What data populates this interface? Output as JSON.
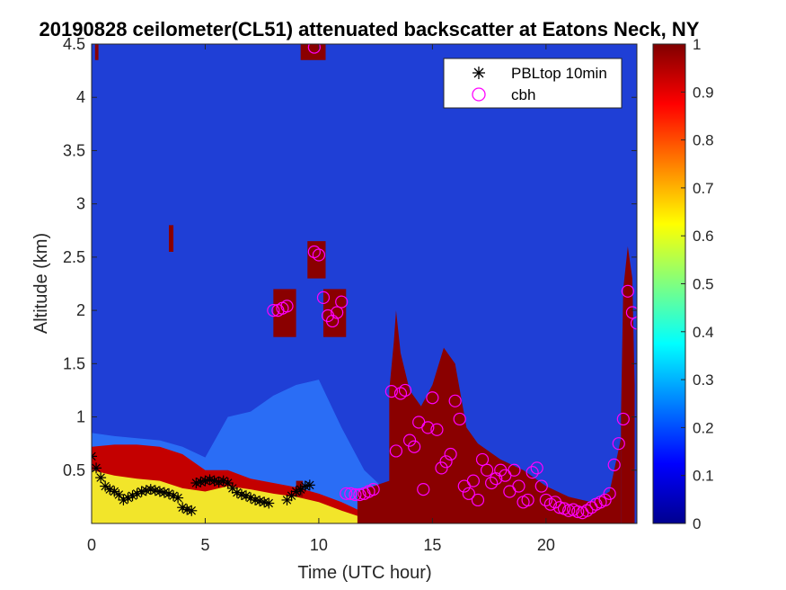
{
  "chart_data": {
    "type": "heatmap",
    "title": "20190828 ceilometer(CL51) attenuated backscatter at Eatons Neck, NY",
    "xlabel": "Time (UTC hour)",
    "ylabel": "Altitude (km)",
    "xlim": [
      0,
      24
    ],
    "ylim": [
      0.0,
      4.5
    ],
    "xticks": [
      0,
      5,
      10,
      15,
      20
    ],
    "yticks": [
      0.5,
      1,
      1.5,
      2,
      2.5,
      3,
      3.5,
      4,
      4.5
    ],
    "xtick_labels": [
      "0",
      "5",
      "10",
      "15",
      "20"
    ],
    "ytick_labels": [
      "0.5",
      "1",
      "1.5",
      "2",
      "2.5",
      "3",
      "3.5",
      "4",
      "4.5"
    ],
    "colormap": "jet",
    "colorbar": {
      "range": [
        0,
        1
      ],
      "ticks": [
        0,
        0.1,
        0.2,
        0.3,
        0.4,
        0.5,
        0.6,
        0.7,
        0.8,
        0.9,
        1
      ],
      "tick_labels": [
        "0",
        "0.1",
        "0.2",
        "0.3",
        "0.4",
        "0.5",
        "0.6",
        "0.7",
        "0.8",
        "0.9",
        "1"
      ]
    },
    "legend": {
      "position": "top-right",
      "entries": [
        {
          "label": "PBLtop 10min",
          "marker": "asterisk",
          "color": "#000000"
        },
        {
          "label": "cbh",
          "marker": "circle",
          "color": "#ff00ff"
        }
      ]
    },
    "background_value": 0.05,
    "boundary_layer": {
      "comment_free": true,
      "x": [
        0,
        1,
        2,
        3,
        4,
        5,
        6,
        7,
        8,
        9,
        10,
        11,
        12,
        13
      ],
      "red_top": [
        0.72,
        0.74,
        0.74,
        0.72,
        0.65,
        0.5,
        0.5,
        0.42,
        0.38,
        0.34,
        0.28,
        0.2,
        0.1,
        0.05
      ],
      "yellow_top": [
        0.5,
        0.45,
        0.42,
        0.4,
        0.33,
        0.3,
        0.35,
        0.32,
        0.28,
        0.25,
        0.2,
        0.12,
        0.05,
        0.02
      ],
      "aerosol_top": [
        0.85,
        0.82,
        0.8,
        0.78,
        0.72,
        0.62,
        1.0,
        1.05,
        1.2,
        1.3,
        1.35,
        0.9,
        0.5,
        0.3
      ]
    },
    "cloud_regions": [
      {
        "x": [
          11.7,
          13.1,
          13.1,
          13.3,
          13.4,
          13.6,
          14.0,
          14.5,
          15.0,
          15.5,
          16.0,
          16.5,
          17.0,
          18.0,
          19.0,
          20.0,
          21.0,
          22.0,
          22.8,
          23.3,
          23.3
        ],
        "top": [
          0.3,
          0.4,
          1.25,
          1.7,
          2.0,
          1.6,
          1.25,
          1.1,
          1.3,
          1.65,
          1.5,
          0.9,
          0.75,
          0.6,
          0.5,
          0.35,
          0.25,
          0.2,
          0.3,
          0.8,
          0.2
        ]
      },
      {
        "x": [
          23.3,
          23.4,
          23.6,
          23.8,
          23.9
        ],
        "top": [
          1.0,
          2.2,
          2.6,
          2.3,
          1.3
        ]
      }
    ],
    "cloud_patches": [
      {
        "x0": 3.4,
        "x1": 3.6,
        "y0": 2.55,
        "y1": 2.8
      },
      {
        "x0": 8.0,
        "x1": 9.0,
        "y0": 1.75,
        "y1": 2.2
      },
      {
        "x0": 9.5,
        "x1": 10.3,
        "y0": 2.3,
        "y1": 2.65
      },
      {
        "x0": 10.2,
        "x1": 11.2,
        "y0": 1.75,
        "y1": 2.2
      },
      {
        "x0": 9.0,
        "x1": 9.3,
        "y0": 0.25,
        "y1": 0.4
      },
      {
        "x0": 9.2,
        "x1": 10.3,
        "y0": 4.35,
        "y1": 4.5
      },
      {
        "x0": 0.15,
        "x1": 0.3,
        "y0": 4.35,
        "y1": 4.5
      }
    ],
    "series": [
      {
        "name": "PBLtop 10min",
        "x": [
          0.0,
          0.2,
          0.4,
          0.6,
          0.8,
          1.0,
          1.2,
          1.4,
          1.6,
          1.8,
          2.0,
          2.2,
          2.4,
          2.6,
          2.8,
          3.0,
          3.2,
          3.4,
          3.6,
          3.8,
          4.0,
          4.2,
          4.4,
          4.6,
          4.8,
          5.0,
          5.2,
          5.4,
          5.6,
          5.8,
          6.0,
          6.2,
          6.4,
          6.6,
          6.8,
          7.0,
          7.2,
          7.4,
          7.6,
          7.8,
          8.6,
          8.8,
          9.0,
          9.2,
          9.4,
          9.6
        ],
        "y": [
          0.63,
          0.52,
          0.43,
          0.35,
          0.32,
          0.3,
          0.27,
          0.22,
          0.24,
          0.26,
          0.28,
          0.3,
          0.31,
          0.32,
          0.31,
          0.3,
          0.29,
          0.28,
          0.26,
          0.24,
          0.15,
          0.13,
          0.12,
          0.38,
          0.39,
          0.4,
          0.41,
          0.4,
          0.39,
          0.4,
          0.38,
          0.33,
          0.29,
          0.27,
          0.26,
          0.24,
          0.22,
          0.21,
          0.2,
          0.19,
          0.22,
          0.26,
          0.3,
          0.32,
          0.35,
          0.36
        ]
      },
      {
        "name": "cbh",
        "x": [
          8.0,
          8.2,
          8.4,
          8.6,
          9.8,
          10.0,
          10.2,
          10.4,
          10.6,
          10.8,
          11.0,
          11.2,
          11.4,
          11.6,
          11.8,
          12.0,
          12.2,
          12.4,
          13.2,
          13.4,
          13.6,
          13.8,
          14.0,
          14.2,
          14.4,
          14.6,
          14.8,
          15.0,
          15.2,
          15.4,
          15.6,
          15.8,
          16.0,
          16.2,
          16.4,
          16.6,
          16.8,
          17.0,
          17.2,
          17.4,
          17.6,
          17.8,
          18.0,
          18.2,
          18.4,
          18.6,
          18.8,
          19.0,
          19.2,
          19.4,
          19.6,
          19.8,
          20.0,
          20.2,
          20.4,
          20.6,
          20.8,
          21.0,
          21.2,
          21.4,
          21.6,
          21.8,
          22.0,
          22.2,
          22.4,
          22.6,
          22.8,
          23.0,
          23.2,
          23.4,
          23.6,
          23.8,
          24.0,
          9.8
        ],
        "y": [
          2.0,
          2.0,
          2.02,
          2.04,
          2.55,
          2.52,
          2.12,
          1.95,
          1.9,
          1.98,
          2.08,
          0.28,
          0.28,
          0.27,
          0.27,
          0.28,
          0.3,
          0.32,
          1.24,
          0.68,
          1.22,
          1.25,
          0.78,
          0.72,
          0.95,
          0.32,
          0.9,
          1.18,
          0.88,
          0.52,
          0.58,
          0.65,
          1.15,
          0.98,
          0.35,
          0.28,
          0.4,
          0.22,
          0.6,
          0.5,
          0.38,
          0.42,
          0.5,
          0.45,
          0.3,
          0.5,
          0.35,
          0.2,
          0.22,
          0.48,
          0.52,
          0.35,
          0.22,
          0.18,
          0.2,
          0.15,
          0.14,
          0.12,
          0.13,
          0.11,
          0.1,
          0.12,
          0.15,
          0.18,
          0.2,
          0.22,
          0.28,
          0.55,
          0.75,
          0.98,
          2.18,
          1.98,
          1.88,
          4.47
        ]
      }
    ]
  }
}
